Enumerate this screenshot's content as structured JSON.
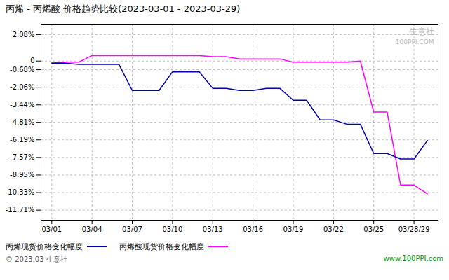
{
  "chart_data": {
    "type": "line",
    "title": "丙烯 - 丙烯酸  价格趋势比较(2023-03-01 - 2023-03-29)",
    "x": [
      1,
      2,
      3,
      4,
      5,
      6,
      7,
      8,
      9,
      10,
      11,
      12,
      13,
      14,
      15,
      16,
      17,
      18,
      19,
      20,
      21,
      22,
      23,
      24,
      25,
      26,
      27,
      28,
      29
    ],
    "series": [
      {
        "name": "丙烯现货价格变化幅度",
        "color": "#0000aa",
        "values": [
          -0.17,
          -0.17,
          -0.26,
          -0.26,
          -0.26,
          -0.26,
          -2.31,
          -2.31,
          -2.31,
          -0.85,
          -0.85,
          -0.85,
          -2.14,
          -2.14,
          -2.31,
          -2.31,
          -2.14,
          -2.14,
          -3.08,
          -3.08,
          -4.62,
          -4.62,
          -4.96,
          -4.96,
          -7.26,
          -7.26,
          -7.69,
          -7.69,
          -6.24
        ]
      },
      {
        "name": "丙烯酸现货价格变化幅度",
        "color": "#ff00ff",
        "values": [
          -0.17,
          -0.09,
          -0.09,
          0.43,
          0.43,
          0.43,
          0.43,
          0.43,
          0.43,
          0.43,
          0.43,
          0.43,
          0.34,
          0.34,
          0.17,
          0.17,
          0.17,
          0.17,
          -0.09,
          -0.09,
          -0.09,
          -0.09,
          -0.09,
          0.0,
          -4.0,
          -4.0,
          -9.74,
          -9.74,
          -10.43
        ]
      }
    ],
    "xlim": [
      0.2,
      29.8
    ],
    "xticks": [
      {
        "value": 1,
        "label": "03/01"
      },
      {
        "value": 4,
        "label": "03/04"
      },
      {
        "value": 7,
        "label": "03/07"
      },
      {
        "value": 10,
        "label": "03/10"
      },
      {
        "value": 13,
        "label": "03/13"
      },
      {
        "value": 16,
        "label": "03/16"
      },
      {
        "value": 19,
        "label": "03/19"
      },
      {
        "value": 22,
        "label": "03/22"
      },
      {
        "value": 25,
        "label": "03/25"
      },
      {
        "value": 28,
        "label": "03/28/29"
      }
    ],
    "ylim": [
      -12.5,
      2.9
    ],
    "yticks": [
      {
        "value": 2.08,
        "label": "2.08%"
      },
      0,
      {
        "value": -0.68,
        "label": "-0.68%"
      },
      {
        "value": -2.06,
        "label": "-2.06%"
      },
      {
        "value": -3.44,
        "label": "-3.44%"
      },
      {
        "value": -4.81,
        "label": "-4.81%"
      },
      {
        "value": -6.19,
        "label": "-6.19%"
      },
      {
        "value": -7.57,
        "label": "-7.57%"
      },
      {
        "value": -8.95,
        "label": "-8.95%"
      },
      {
        "value": -10.33,
        "label": "-10.33%"
      },
      {
        "value": -11.71,
        "label": "-11.71%"
      }
    ],
    "grid": true,
    "legend": "bottom",
    "annotations": [
      "生意社",
      "100PPI.COM",
      "© 2023.03 生意社",
      "www.100PPI.com"
    ]
  }
}
